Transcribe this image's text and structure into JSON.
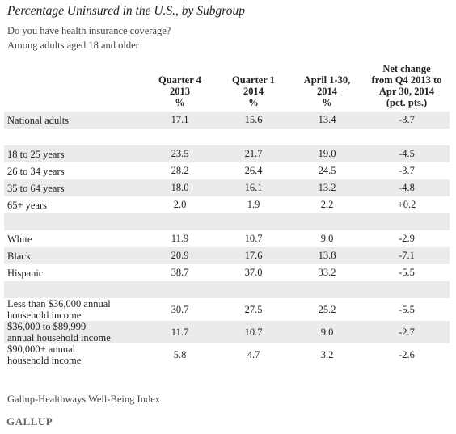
{
  "title": "Percentage Uninsured in the U.S., by Subgroup",
  "subtitle_1": "Do you have health insurance coverage?",
  "subtitle_2": "Among adults aged 18 and older",
  "source": "Gallup-Healthways Well-Being Index",
  "brand": "GALLUP",
  "chart_data": {
    "type": "table",
    "title": "Percentage Uninsured in the U.S., by Subgroup",
    "columns": [
      {
        "lines": [
          "Quarter 4",
          "2013",
          "%"
        ]
      },
      {
        "lines": [
          "Quarter 1",
          "2014",
          "%"
        ]
      },
      {
        "lines": [
          "April 1-30,",
          "2014",
          "%"
        ]
      },
      {
        "lines": [
          "Net change",
          "from Q4 2013 to",
          "Apr 30, 2014",
          "(pct. pts.)"
        ]
      }
    ],
    "rows": [
      {
        "label": [
          "National adults"
        ],
        "values": [
          "17.1",
          "15.6",
          "13.4",
          "-3.7"
        ]
      },
      {
        "gap": true
      },
      {
        "label": [
          "18 to 25 years"
        ],
        "values": [
          "23.5",
          "21.7",
          "19.0",
          "-4.5"
        ]
      },
      {
        "label": [
          "26 to 34 years"
        ],
        "values": [
          "28.2",
          "26.4",
          "24.5",
          "-3.7"
        ]
      },
      {
        "label": [
          "35 to 64 years"
        ],
        "values": [
          "18.0",
          "16.1",
          "13.2",
          "-4.8"
        ]
      },
      {
        "label": [
          "65+ years"
        ],
        "values": [
          "2.0",
          "1.9",
          "2.2",
          "+0.2"
        ]
      },
      {
        "gap": true
      },
      {
        "label": [
          "White"
        ],
        "values": [
          "11.9",
          "10.7",
          "9.0",
          "-2.9"
        ]
      },
      {
        "label": [
          "Black"
        ],
        "values": [
          "20.9",
          "17.6",
          "13.8",
          "-7.1"
        ]
      },
      {
        "label": [
          "Hispanic"
        ],
        "values": [
          "38.7",
          "37.0",
          "33.2",
          "-5.5"
        ]
      },
      {
        "gap": true
      },
      {
        "label": [
          "Less than $36,000 annual",
          "household income"
        ],
        "values": [
          "30.7",
          "27.5",
          "25.2",
          "-5.5"
        ]
      },
      {
        "label": [
          "$36,000 to $89,999",
          "annual household income"
        ],
        "values": [
          "11.7",
          "10.7",
          "9.0",
          "-2.7"
        ]
      },
      {
        "label": [
          "$90,000+ annual",
          "household income"
        ],
        "values": [
          "5.8",
          "4.7",
          "3.2",
          "-2.6"
        ]
      }
    ]
  }
}
